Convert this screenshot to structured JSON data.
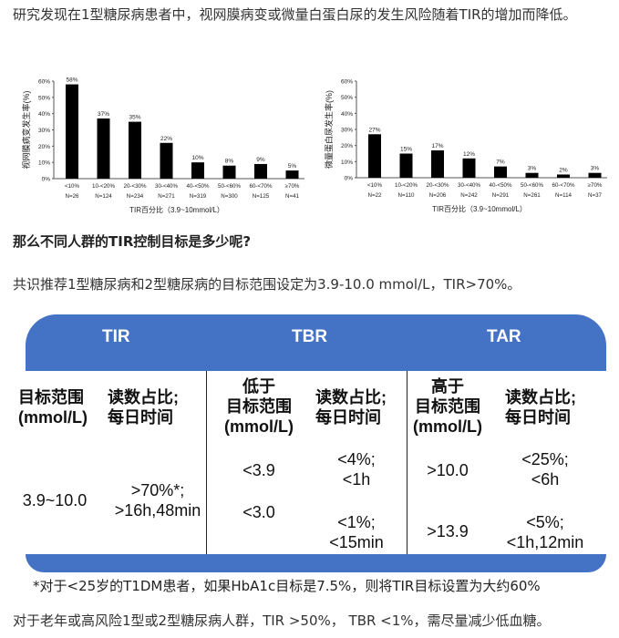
{
  "intro": "研究发现在1型糖尿病患者中，视网膜病变或微量白蛋白尿的发生风险随着TIR的增加而降低。",
  "chart_data": [
    {
      "type": "bar",
      "ylabel": "视网膜病变发生率(%)",
      "xlabel": "TIR百分比（3.9~10mmol/L）",
      "yticks": [
        "0%",
        "10%",
        "20%",
        "30%",
        "40%",
        "50%",
        "60%"
      ],
      "ylim": [
        0,
        60
      ],
      "categories": [
        "<10%",
        "10-<20%",
        "20-<30%",
        "30-<40%",
        "40-<50%",
        "50-<60%",
        "60-<70%",
        "≥70%"
      ],
      "n": [
        "N=26",
        "N=124",
        "N=234",
        "N=271",
        "N=319",
        "N=300",
        "N=125",
        "N=41"
      ],
      "values": [
        58,
        37,
        35,
        22,
        10,
        8,
        9,
        5
      ],
      "labels": [
        "58%",
        "37%",
        "35%",
        "22%",
        "10%",
        "8%",
        "9%",
        "5%"
      ]
    },
    {
      "type": "bar",
      "ylabel": "微量蛋白尿发生率(%)",
      "xlabel": "TIR百分比（3.9~10mmol/L）",
      "yticks": [
        "0%",
        "10%",
        "20%",
        "30%",
        "40%",
        "50%",
        "60%"
      ],
      "ylim": [
        0,
        60
      ],
      "categories": [
        "<10%",
        "10-<20%",
        "20-<30%",
        "30-<40%",
        "40-<50%",
        "50-<60%",
        "60-<70%",
        "≥70%"
      ],
      "n": [
        "N=22",
        "N=110",
        "N=206",
        "N=242",
        "N=291",
        "N=261",
        "N=114",
        "N=37"
      ],
      "values": [
        27,
        15,
        17,
        12,
        7,
        3,
        2,
        3
      ],
      "labels": [
        "27%",
        "15%",
        "17%",
        "12%",
        "7%",
        "3%",
        "2%",
        "3%"
      ]
    }
  ],
  "question": "那么不同人群的TIR控制目标是多少呢?",
  "recommendation": "共识推荐1型糖尿病和2型糖尿病的目标范围设定为3.9-10.0 mmol/L，TIR>70%。",
  "table": {
    "colors": {
      "header": "#4472c4"
    },
    "headers": [
      "TIR",
      "TBR",
      "TAR"
    ],
    "tir": {
      "range_head": [
        "目标范围",
        "(mmol/L)"
      ],
      "pct_head": [
        "读数占比;",
        "每日时间"
      ],
      "range": "3.9~10.0",
      "pct": [
        ">70%*;",
        ">16h,48min"
      ]
    },
    "tbr": {
      "range_head": [
        "低于",
        "目标范围",
        "(mmol/L)"
      ],
      "pct_head": [
        "读数占比;",
        "每日时间"
      ],
      "range1": "<3.9",
      "pct1": [
        "<4%;",
        "<1h"
      ],
      "range2": "<3.0",
      "pct2": [
        "<1%;",
        "<15min"
      ]
    },
    "tar": {
      "range_head": [
        "高于",
        "目标范围",
        "(mmol/L)"
      ],
      "pct_head": [
        "读数占比;",
        "每日时间"
      ],
      "range1": ">10.0",
      "pct1": [
        "<25%;",
        "<6h"
      ],
      "range2": ">13.9",
      "pct2": [
        "<5%;",
        "<1h,12min"
      ]
    }
  },
  "footnote": "*对于<25岁的T1DM患者，如果HbA1c目标是7.5%，则将TIR目标设置为大约60%",
  "last": "对于老年或高风险1型或2型糖尿病人群，TIR >50%， TBR <1%，需尽量减少低血糖。"
}
